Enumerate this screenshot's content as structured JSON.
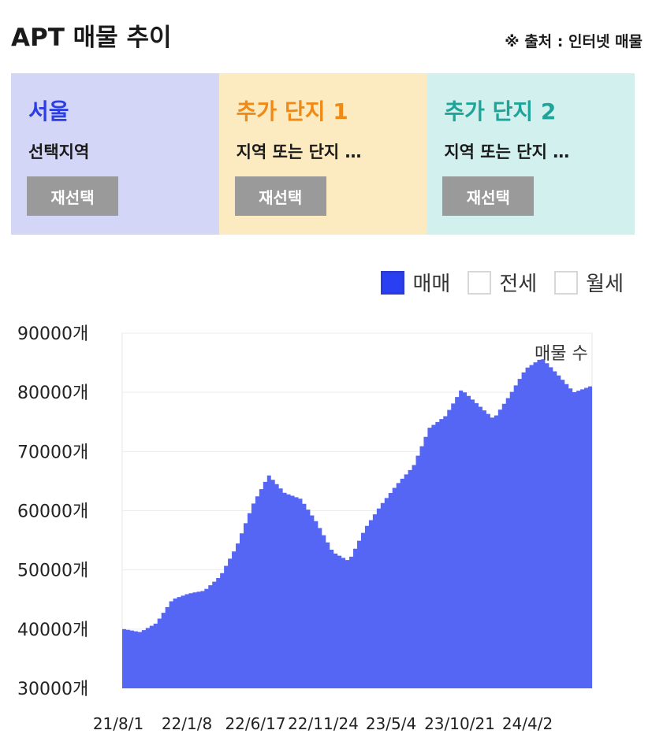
{
  "header": {
    "title": "APT 매물 추이",
    "source": "※ 출처 : 인터넷 매물"
  },
  "panels": [
    {
      "name": "서울",
      "sub": "선택지역",
      "button": "재선택",
      "bg": "#d3d6f6",
      "color": "#2d3fe0"
    },
    {
      "name": "추가 단지 1",
      "sub": "지역 또는 단지 …",
      "button": "재선택",
      "bg": "#fcebc0",
      "color": "#f08a16"
    },
    {
      "name": "추가 단지 2",
      "sub": "지역 또는 단지 …",
      "button": "재선택",
      "bg": "#d2f0ee",
      "color": "#1fa49a"
    }
  ],
  "legend": [
    {
      "label": "매매",
      "checked": true
    },
    {
      "label": "전세",
      "checked": false
    },
    {
      "label": "월세",
      "checked": false
    }
  ],
  "colors": {
    "area": "#5566f4",
    "accent": "#2b3ff2"
  },
  "chart_data": {
    "type": "area",
    "series_label": "매물 수",
    "y_suffix": "개",
    "ylim": [
      30000,
      90000
    ],
    "y_ticks": [
      90000,
      80000,
      70000,
      60000,
      50000,
      40000,
      30000
    ],
    "x_ticks": [
      "21/8/1",
      "22/1/8",
      "22/6/17",
      "22/11/24",
      "23/5/4",
      "23/10/21",
      "24/4/2"
    ],
    "grid": true,
    "series": [
      {
        "x": [
          "21/8/1",
          "21/9/15",
          "21/10/30",
          "21/12/15",
          "22/1/8",
          "22/2/20",
          "22/4/5",
          "22/5/20",
          "22/6/17",
          "22/7/15",
          "22/8/10",
          "22/9/10",
          "22/10/15",
          "22/11/24",
          "22/12/20",
          "23/2/1",
          "23/3/15",
          "23/5/4",
          "23/6/20",
          "23/8/5",
          "23/9/20",
          "23/10/21",
          "23/11/25",
          "23/12/20",
          "24/1/25",
          "24/3/1",
          "24/4/2",
          "24/5/15",
          "24/6/20",
          "24/7/20"
        ],
        "values": [
          40000,
          39500,
          41000,
          45000,
          46000,
          46500,
          49000,
          54000,
          61000,
          66000,
          63000,
          62000,
          58000,
          53000,
          51500,
          57000,
          61000,
          64500,
          67500,
          74000,
          76000,
          80500,
          78000,
          75500,
          79500,
          84000,
          85800,
          83000,
          80000,
          81000
        ]
      }
    ]
  }
}
